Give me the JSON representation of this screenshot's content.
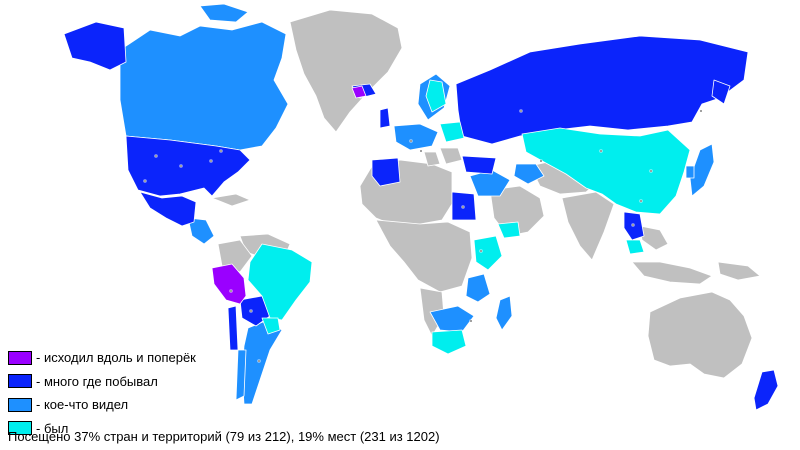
{
  "colors": {
    "ocean": "#ffffff",
    "not_visited": "#c0c0c0",
    "level1": "#9a00ff",
    "level2": "#0b24fb",
    "level3": "#1e90ff",
    "level4": "#00eeee",
    "point": "#000000"
  },
  "legend": [
    {
      "key": "level1",
      "label": "- исходил вдоль и поперёк"
    },
    {
      "key": "level2",
      "label": "- много где побывал"
    },
    {
      "key": "level3",
      "label": "- кое-что видел"
    },
    {
      "key": "level4",
      "label": "- был"
    }
  ],
  "summary": "Посещено 37% стран и территорий (79 из 212), 19% мест (231 из 1202)"
}
